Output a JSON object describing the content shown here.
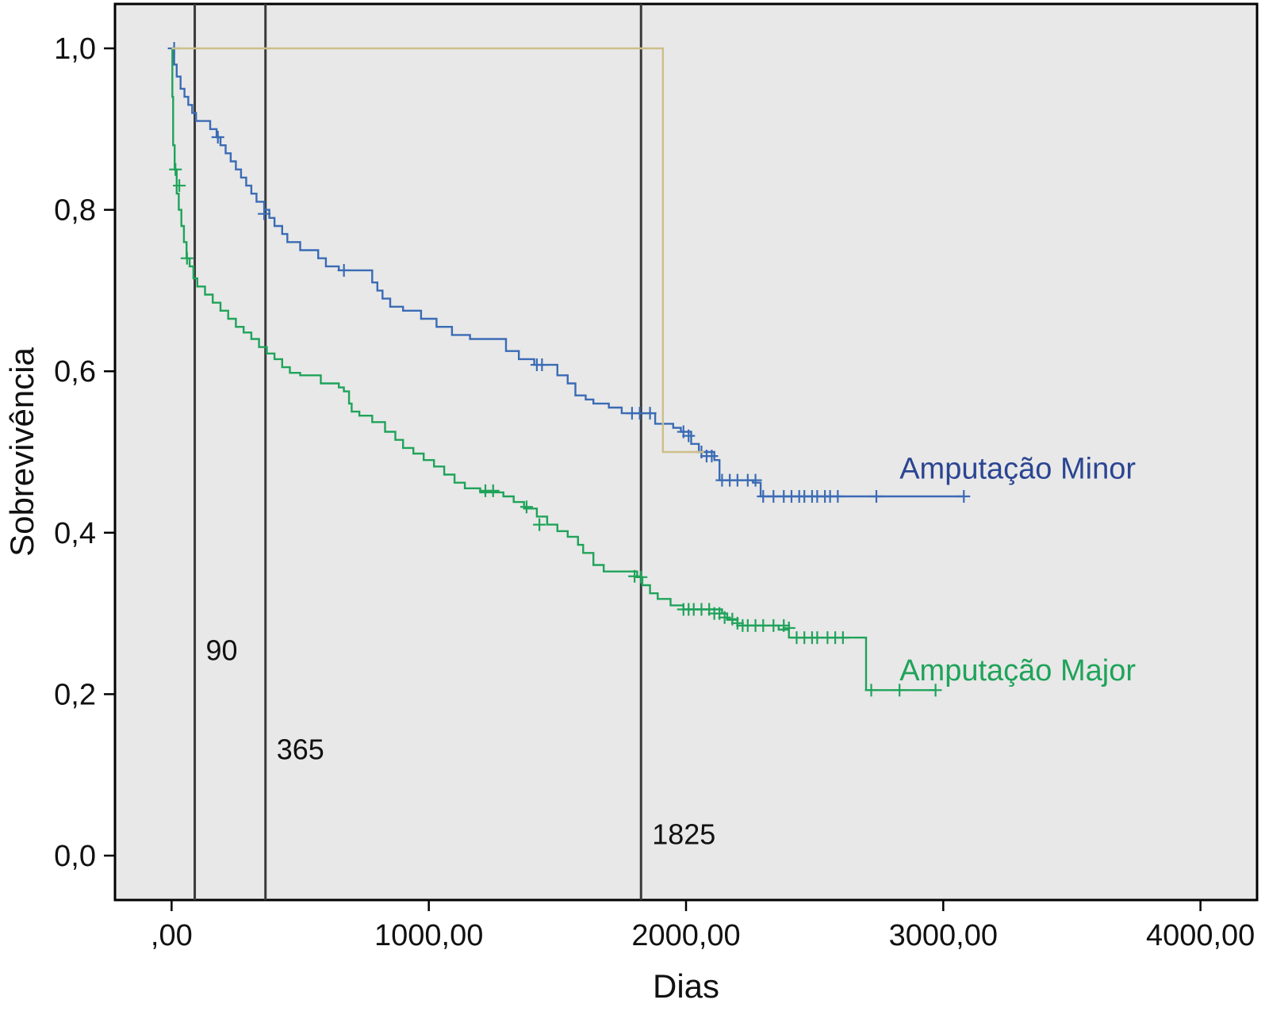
{
  "chart_data": {
    "type": "line",
    "xlabel": "Dias",
    "ylabel": "Sobrevivência",
    "xlim": [
      -220,
      4220
    ],
    "ylim": [
      -0.055,
      1.055
    ],
    "xticks": [
      0,
      1000,
      2000,
      3000,
      4000
    ],
    "xtick_labels": [
      ",00",
      "1000,00",
      "2000,00",
      "3000,00",
      "4000,00"
    ],
    "yticks": [
      0,
      0.2,
      0.4,
      0.6,
      0.8,
      1.0
    ],
    "ytick_labels": [
      "0,0",
      "0,2",
      "0,4",
      "0,6",
      "0,8",
      "1,0"
    ],
    "grid": false,
    "plot_background": "#e8e8e8",
    "reference_lines": [
      {
        "x": 90,
        "label": "90",
        "label_y": 0.255
      },
      {
        "x": 365,
        "label": "365",
        "label_y": 0.132
      },
      {
        "x": 1825,
        "label": "1825",
        "label_y": 0.027
      }
    ],
    "series": [
      {
        "name": "Amputação Minor",
        "color": "#3a6bb5",
        "label_color": "#2b4592",
        "label_at": [
          2830,
          0.48
        ],
        "steps": [
          [
            0,
            1.0
          ],
          [
            10,
            0.98
          ],
          [
            20,
            0.965
          ],
          [
            35,
            0.95
          ],
          [
            50,
            0.94
          ],
          [
            65,
            0.93
          ],
          [
            80,
            0.92
          ],
          [
            95,
            0.91
          ],
          [
            150,
            0.9
          ],
          [
            175,
            0.89
          ],
          [
            190,
            0.88
          ],
          [
            210,
            0.87
          ],
          [
            230,
            0.86
          ],
          [
            250,
            0.85
          ],
          [
            270,
            0.84
          ],
          [
            290,
            0.83
          ],
          [
            310,
            0.82
          ],
          [
            330,
            0.81
          ],
          [
            360,
            0.8
          ],
          [
            380,
            0.79
          ],
          [
            400,
            0.78
          ],
          [
            430,
            0.77
          ],
          [
            450,
            0.76
          ],
          [
            500,
            0.75
          ],
          [
            570,
            0.74
          ],
          [
            600,
            0.73
          ],
          [
            650,
            0.725
          ],
          [
            780,
            0.71
          ],
          [
            800,
            0.7
          ],
          [
            820,
            0.69
          ],
          [
            850,
            0.68
          ],
          [
            900,
            0.675
          ],
          [
            970,
            0.665
          ],
          [
            1030,
            0.655
          ],
          [
            1090,
            0.645
          ],
          [
            1160,
            0.64
          ],
          [
            1300,
            0.625
          ],
          [
            1350,
            0.615
          ],
          [
            1410,
            0.608
          ],
          [
            1500,
            0.595
          ],
          [
            1540,
            0.585
          ],
          [
            1570,
            0.57
          ],
          [
            1610,
            0.565
          ],
          [
            1640,
            0.56
          ],
          [
            1700,
            0.555
          ],
          [
            1750,
            0.548
          ],
          [
            1880,
            0.535
          ],
          [
            1950,
            0.53
          ],
          [
            1980,
            0.525
          ],
          [
            2020,
            0.51
          ],
          [
            2050,
            0.5
          ],
          [
            2110,
            0.49
          ],
          [
            2130,
            0.465
          ],
          [
            2260,
            0.462
          ],
          [
            2290,
            0.445
          ],
          [
            3080,
            0.445
          ]
        ],
        "censored": [
          [
            10,
            1.0
          ],
          [
            180,
            0.89
          ],
          [
            360,
            0.795
          ],
          [
            670,
            0.725
          ],
          [
            1420,
            0.608
          ],
          [
            1440,
            0.608
          ],
          [
            1790,
            0.548
          ],
          [
            1820,
            0.548
          ],
          [
            1860,
            0.548
          ],
          [
            1990,
            0.525
          ],
          [
            2010,
            0.52
          ],
          [
            2060,
            0.5
          ],
          [
            2080,
            0.495
          ],
          [
            2100,
            0.495
          ],
          [
            2140,
            0.465
          ],
          [
            2170,
            0.465
          ],
          [
            2200,
            0.465
          ],
          [
            2240,
            0.465
          ],
          [
            2270,
            0.465
          ],
          [
            2300,
            0.445
          ],
          [
            2340,
            0.445
          ],
          [
            2380,
            0.445
          ],
          [
            2410,
            0.445
          ],
          [
            2440,
            0.445
          ],
          [
            2460,
            0.445
          ],
          [
            2490,
            0.445
          ],
          [
            2510,
            0.445
          ],
          [
            2540,
            0.445
          ],
          [
            2560,
            0.445
          ],
          [
            2590,
            0.445
          ],
          [
            2740,
            0.445
          ],
          [
            3080,
            0.445
          ]
        ]
      },
      {
        "name": "Amputação Major",
        "color": "#1fa35a",
        "label_color": "#1fa35a",
        "label_at": [
          2830,
          0.23
        ],
        "steps": [
          [
            0,
            1.0
          ],
          [
            3,
            0.94
          ],
          [
            6,
            0.88
          ],
          [
            12,
            0.85
          ],
          [
            20,
            0.82
          ],
          [
            28,
            0.8
          ],
          [
            38,
            0.78
          ],
          [
            48,
            0.76
          ],
          [
            58,
            0.74
          ],
          [
            70,
            0.73
          ],
          [
            85,
            0.715
          ],
          [
            100,
            0.705
          ],
          [
            130,
            0.695
          ],
          [
            160,
            0.685
          ],
          [
            190,
            0.675
          ],
          [
            220,
            0.665
          ],
          [
            250,
            0.655
          ],
          [
            280,
            0.648
          ],
          [
            310,
            0.64
          ],
          [
            340,
            0.63
          ],
          [
            370,
            0.622
          ],
          [
            400,
            0.615
          ],
          [
            430,
            0.605
          ],
          [
            460,
            0.598
          ],
          [
            500,
            0.595
          ],
          [
            580,
            0.585
          ],
          [
            650,
            0.58
          ],
          [
            670,
            0.575
          ],
          [
            690,
            0.56
          ],
          [
            700,
            0.55
          ],
          [
            730,
            0.545
          ],
          [
            780,
            0.537
          ],
          [
            830,
            0.525
          ],
          [
            870,
            0.515
          ],
          [
            900,
            0.505
          ],
          [
            940,
            0.498
          ],
          [
            980,
            0.49
          ],
          [
            1020,
            0.482
          ],
          [
            1060,
            0.472
          ],
          [
            1100,
            0.462
          ],
          [
            1140,
            0.455
          ],
          [
            1200,
            0.45
          ],
          [
            1290,
            0.445
          ],
          [
            1330,
            0.438
          ],
          [
            1370,
            0.43
          ],
          [
            1420,
            0.42
          ],
          [
            1460,
            0.41
          ],
          [
            1500,
            0.402
          ],
          [
            1540,
            0.395
          ],
          [
            1580,
            0.385
          ],
          [
            1600,
            0.375
          ],
          [
            1640,
            0.36
          ],
          [
            1680,
            0.352
          ],
          [
            1810,
            0.345
          ],
          [
            1830,
            0.335
          ],
          [
            1860,
            0.325
          ],
          [
            1890,
            0.318
          ],
          [
            1940,
            0.31
          ],
          [
            1990,
            0.305
          ],
          [
            2140,
            0.3
          ],
          [
            2160,
            0.292
          ],
          [
            2200,
            0.285
          ],
          [
            2360,
            0.28
          ],
          [
            2400,
            0.27
          ],
          [
            2700,
            0.205
          ],
          [
            2970,
            0.205
          ]
        ],
        "censored": [
          [
            15,
            0.85
          ],
          [
            30,
            0.83
          ],
          [
            60,
            0.74
          ],
          [
            1220,
            0.452
          ],
          [
            1250,
            0.452
          ],
          [
            1380,
            0.432
          ],
          [
            1430,
            0.41
          ],
          [
            1800,
            0.346
          ],
          [
            1825,
            0.345
          ],
          [
            1990,
            0.305
          ],
          [
            2010,
            0.305
          ],
          [
            2030,
            0.305
          ],
          [
            2060,
            0.305
          ],
          [
            2090,
            0.305
          ],
          [
            2110,
            0.3
          ],
          [
            2130,
            0.3
          ],
          [
            2150,
            0.295
          ],
          [
            2180,
            0.293
          ],
          [
            2200,
            0.288
          ],
          [
            2220,
            0.285
          ],
          [
            2240,
            0.285
          ],
          [
            2270,
            0.285
          ],
          [
            2300,
            0.285
          ],
          [
            2340,
            0.285
          ],
          [
            2380,
            0.285
          ],
          [
            2400,
            0.282
          ],
          [
            2430,
            0.27
          ],
          [
            2460,
            0.27
          ],
          [
            2490,
            0.27
          ],
          [
            2510,
            0.27
          ],
          [
            2550,
            0.27
          ],
          [
            2580,
            0.27
          ],
          [
            2610,
            0.27
          ],
          [
            2720,
            0.205
          ],
          [
            2830,
            0.205
          ],
          [
            2970,
            0.205
          ]
        ]
      },
      {
        "name": "",
        "color": "#cdbf8a",
        "steps": [
          [
            0,
            1.0
          ],
          [
            1910,
            0.5
          ],
          [
            2070,
            0.5
          ]
        ],
        "censored": []
      }
    ]
  }
}
